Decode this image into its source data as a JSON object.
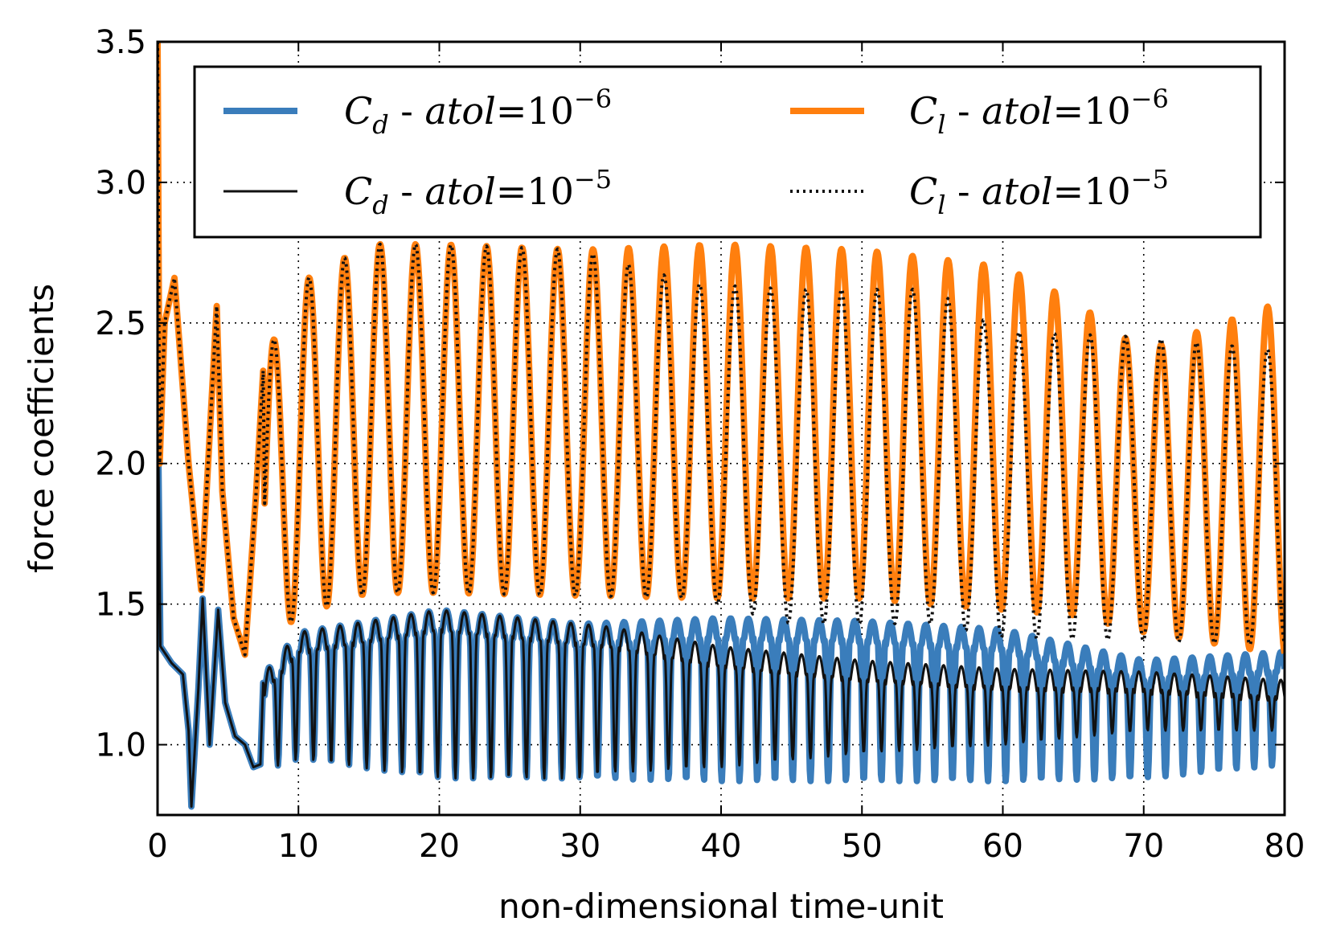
{
  "chart_data": {
    "type": "line",
    "title": "",
    "xlabel": "non-dimensional time-unit",
    "ylabel": "force coefficients",
    "xlim": [
      0,
      80
    ],
    "ylim": [
      0.75,
      3.5
    ],
    "xticks": [
      "0",
      "10",
      "20",
      "30",
      "40",
      "50",
      "60",
      "70",
      "80"
    ],
    "yticks": [
      "1.0",
      "1.5",
      "2.0",
      "2.5",
      "3.0",
      "3.5"
    ],
    "grid": true,
    "legend_position": "top",
    "series": [
      {
        "name": "C_d - atol=10^-6",
        "legend": {
          "var": "C",
          "sub": "d",
          "sep": " - ",
          "expr": "atol",
          "eq": "=10",
          "sup": "−6"
        },
        "color": "#3a7dbb",
        "style": "solid-thick",
        "trend": {
          "t": [
            7,
            10,
            20,
            30,
            40,
            50,
            60,
            70,
            80
          ],
          "max": [
            1.22,
            1.4,
            1.48,
            1.43,
            1.45,
            1.44,
            1.41,
            1.3,
            1.33
          ],
          "min": [
            0.9,
            0.95,
            0.88,
            0.88,
            0.87,
            0.87,
            0.87,
            0.88,
            0.93
          ]
        }
      },
      {
        "name": "C_d - atol=10^-5",
        "legend": {
          "var": "C",
          "sub": "d",
          "sep": " - ",
          "expr": "atol",
          "eq": "=10",
          "sup": "−5"
        },
        "color": "#111111",
        "style": "solid-thin",
        "trend": {
          "t": [
            7,
            10,
            20,
            30,
            32,
            40,
            50,
            60,
            70,
            80
          ],
          "max": [
            1.22,
            1.4,
            1.48,
            1.43,
            1.42,
            1.35,
            1.3,
            1.27,
            1.26,
            1.23
          ],
          "min": [
            0.9,
            0.95,
            0.88,
            0.88,
            0.9,
            0.92,
            0.97,
            1.0,
            1.05,
            1.05
          ]
        }
      },
      {
        "name": "C_l - atol=10^-6",
        "legend": {
          "var": "C",
          "sub": "l",
          "sep": " - ",
          "expr": "atol",
          "eq": "=10",
          "sup": "−6"
        },
        "color": "#ff7f0e",
        "style": "solid-thick",
        "trend": {
          "t": [
            7,
            10,
            15,
            20,
            30,
            40,
            50,
            60,
            65,
            70,
            80
          ],
          "max": [
            2.3,
            2.64,
            2.78,
            2.78,
            2.76,
            2.78,
            2.76,
            2.7,
            2.58,
            2.4,
            2.58
          ],
          "min": [
            1.32,
            1.46,
            1.54,
            1.54,
            1.53,
            1.52,
            1.52,
            1.48,
            1.46,
            1.4,
            1.32
          ]
        }
      },
      {
        "name": "C_l - atol=10^-5",
        "legend": {
          "var": "C",
          "sub": "l",
          "sep": " - ",
          "expr": "atol",
          "eq": "=10",
          "sup": "−5"
        },
        "color": "#111111",
        "style": "dotted",
        "trend": {
          "t": [
            7,
            10,
            15,
            20,
            30,
            38,
            45,
            55,
            60,
            70,
            80
          ],
          "max": [
            2.3,
            2.64,
            2.78,
            2.78,
            2.76,
            2.64,
            2.62,
            2.62,
            2.47,
            2.45,
            2.4
          ],
          "min": [
            1.32,
            1.46,
            1.54,
            1.54,
            1.53,
            1.52,
            1.43,
            1.43,
            1.38,
            1.37,
            1.35
          ]
        }
      }
    ]
  }
}
